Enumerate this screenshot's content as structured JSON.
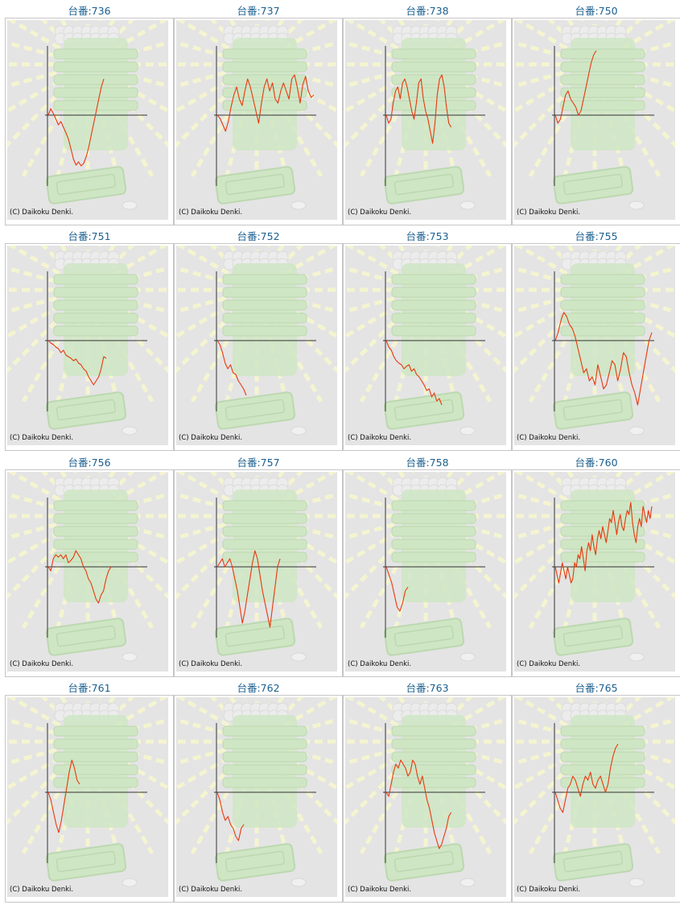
{
  "graph_background": {
    "base": "#e4e4e4",
    "ray": "#f6f6cf",
    "machine": "#cfe6c4",
    "machine_edge": "#bcd8b0",
    "orbs": "#ececec"
  },
  "colors": {
    "title": "#1a5f8f",
    "line": "#e8380d",
    "axis": "#333333"
  },
  "copyright": "(C) Daikoku Denki.",
  "charts": [
    {
      "label": "台番:736",
      "chart_data": {
        "type": "line",
        "values": [
          0,
          8,
          2,
          -5,
          -12,
          -8,
          -15,
          -22,
          -30,
          -42,
          -55,
          -62,
          -58,
          -63,
          -60,
          -52,
          -40,
          -25,
          -10,
          5,
          20,
          35,
          45
        ]
      }
    },
    {
      "label": "台番:737",
      "chart_data": {
        "type": "line",
        "values": [
          0,
          -4,
          -12,
          -20,
          -8,
          10,
          25,
          35,
          20,
          12,
          30,
          45,
          35,
          20,
          5,
          -10,
          15,
          35,
          45,
          30,
          40,
          20,
          15,
          30,
          40,
          30,
          20,
          45,
          50,
          35,
          15,
          38,
          48,
          30,
          22,
          25
        ]
      }
    },
    {
      "label": "台番:738",
      "chart_data": {
        "type": "line",
        "values": [
          0,
          -10,
          -5,
          15,
          30,
          35,
          20,
          40,
          45,
          35,
          20,
          5,
          -5,
          15,
          40,
          45,
          20,
          5,
          -5,
          -20,
          -35,
          -10,
          25,
          45,
          50,
          35,
          10,
          -10,
          -15
        ]
      }
    },
    {
      "label": "台番:750",
      "chart_data": {
        "type": "line",
        "values": [
          0,
          -10,
          -5,
          10,
          25,
          30,
          20,
          15,
          10,
          0,
          5,
          20,
          35,
          50,
          65,
          75,
          80
        ]
      }
    },
    {
      "label": "台番:751",
      "chart_data": {
        "type": "line",
        "values": [
          0,
          -3,
          -5,
          -8,
          -10,
          -15,
          -12,
          -18,
          -20,
          -22,
          -25,
          -23,
          -28,
          -30,
          -35,
          -38,
          -45,
          -50,
          -55,
          -50,
          -45,
          -35,
          -20,
          -22
        ]
      }
    },
    {
      "label": "台番:752",
      "chart_data": {
        "type": "line",
        "values": [
          0,
          -5,
          -15,
          -28,
          -35,
          -30,
          -40,
          -42,
          -50,
          -55,
          -60,
          -68
        ]
      }
    },
    {
      "label": "台番:753",
      "chart_data": {
        "type": "line",
        "values": [
          0,
          -8,
          -12,
          -20,
          -25,
          -28,
          -30,
          -35,
          -32,
          -30,
          -38,
          -35,
          -42,
          -45,
          -50,
          -55,
          -62,
          -60,
          -70,
          -65,
          -75,
          -72,
          -80
        ]
      }
    },
    {
      "label": "台番:755",
      "chart_data": {
        "type": "line",
        "values": [
          0,
          10,
          25,
          35,
          30,
          20,
          15,
          5,
          -10,
          -25,
          -40,
          -35,
          -50,
          -45,
          -55,
          -30,
          -45,
          -60,
          -55,
          -40,
          -25,
          -30,
          -50,
          -35,
          -15,
          -20,
          -40,
          -55,
          -65,
          -80,
          -60,
          -40,
          -20,
          0,
          10
        ]
      }
    },
    {
      "label": "台番:756",
      "chart_data": {
        "type": "line",
        "values": [
          0,
          -5,
          10,
          15,
          12,
          15,
          10,
          15,
          5,
          8,
          12,
          20,
          15,
          10,
          0,
          -5,
          -15,
          -20,
          -30,
          -40,
          -45,
          -35,
          -30,
          -15,
          -5,
          0
        ]
      }
    },
    {
      "label": "台番:757",
      "chart_data": {
        "type": "line",
        "values": [
          0,
          5,
          10,
          0,
          5,
          10,
          0,
          -15,
          -30,
          -50,
          -70,
          -55,
          -35,
          -15,
          5,
          20,
          10,
          -10,
          -30,
          -45,
          -60,
          -75,
          -50,
          -25,
          0,
          10
        ]
      }
    },
    {
      "label": "台番:758",
      "chart_data": {
        "type": "line",
        "values": [
          0,
          -10,
          -20,
          -35,
          -50,
          -55,
          -45,
          -30,
          -25
        ]
      }
    },
    {
      "label": "台番:760",
      "chart_data": {
        "type": "line",
        "values": [
          0,
          -10,
          -20,
          -8,
          5,
          -5,
          -15,
          0,
          -10,
          -20,
          -15,
          5,
          0,
          15,
          10,
          25,
          10,
          -5,
          20,
          30,
          20,
          40,
          25,
          15,
          35,
          45,
          35,
          50,
          40,
          30,
          45,
          60,
          55,
          70,
          55,
          40,
          55,
          65,
          50,
          45,
          60,
          70,
          65,
          80,
          55,
          40,
          30,
          50,
          60,
          50,
          75,
          65,
          55,
          70,
          60,
          75
        ]
      }
    },
    {
      "label": "台番:761",
      "chart_data": {
        "type": "line",
        "values": [
          0,
          -10,
          -25,
          -40,
          -50,
          -35,
          -15,
          5,
          25,
          40,
          30,
          15,
          10
        ]
      }
    },
    {
      "label": "台番:762",
      "chart_data": {
        "type": "line",
        "values": [
          0,
          -10,
          -25,
          -35,
          -30,
          -40,
          -45,
          -55,
          -60,
          -45,
          -40
        ]
      }
    },
    {
      "label": "台番:763",
      "chart_data": {
        "type": "line",
        "values": [
          0,
          -5,
          10,
          25,
          35,
          30,
          40,
          35,
          30,
          20,
          25,
          40,
          35,
          20,
          10,
          20,
          5,
          -10,
          -20,
          -35,
          -50,
          -60,
          -70,
          -65,
          -55,
          -45,
          -30,
          -25
        ]
      }
    },
    {
      "label": "台番:765",
      "chart_data": {
        "type": "line",
        "values": [
          0,
          -10,
          -20,
          -25,
          -10,
          5,
          10,
          20,
          15,
          5,
          -5,
          10,
          20,
          15,
          25,
          10,
          5,
          15,
          20,
          10,
          0,
          10,
          30,
          45,
          55,
          60
        ]
      }
    }
  ]
}
